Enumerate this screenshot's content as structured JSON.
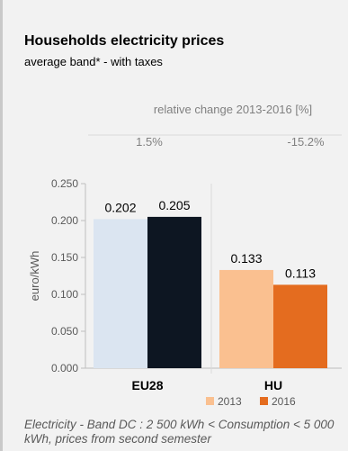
{
  "header": {
    "title": "Households electricity prices",
    "subtitle": "average band* - with taxes"
  },
  "change_panel": {
    "title": "relative change 2013-2016 [%]",
    "values": [
      "1.5%",
      "-15.2%"
    ]
  },
  "footnote": "Electricity - Band DC : 2 500 kWh < Consumption < 5 000 kWh, prices from second semester",
  "colors": {
    "eu28_2013": "#dbe5f1",
    "eu28_2016": "#0d1622",
    "hu_2013": "#fac090",
    "hu_2016": "#e46c1f",
    "muted_text": "#808080",
    "axis": "#bfbfbf"
  },
  "chart_data": {
    "type": "bar",
    "categories": [
      "EU28",
      "HU"
    ],
    "series": [
      {
        "name": "2013",
        "values": [
          0.202,
          0.133
        ]
      },
      {
        "name": "2016",
        "values": [
          0.205,
          0.113
        ]
      }
    ],
    "value_labels": [
      [
        "0.202",
        "0.205"
      ],
      [
        "0.133",
        "0.113"
      ]
    ],
    "ylabel": "euro/kWh",
    "ylim": [
      0,
      0.25
    ],
    "yticks": [
      "0.000",
      "0.050",
      "0.100",
      "0.150",
      "0.200",
      "0.250"
    ],
    "legend_position": "bottom",
    "grid": false
  }
}
